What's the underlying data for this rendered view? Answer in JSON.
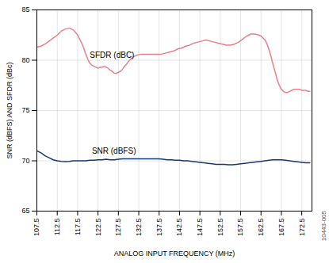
{
  "chart_data": {
    "type": "line",
    "xlabel": "ANALOG INPUT FREQUENCY (MHz)",
    "ylabel": "SNR (dBFS) AND SFDR (dBc)",
    "caption": "10443-005",
    "xlim": [
      107.5,
      175.0
    ],
    "xticks": [
      107.5,
      112.5,
      117.5,
      122.5,
      127.5,
      132.5,
      137.5,
      142.5,
      147.5,
      152.5,
      157.5,
      162.5,
      167.5,
      172.5
    ],
    "ylim": [
      65,
      85
    ],
    "yticks": [
      65,
      70,
      75,
      80,
      85
    ],
    "grid": true,
    "annotations": [
      {
        "text": "SFDR (dBC)",
        "x": 120.5,
        "y": 80.2
      },
      {
        "text": "SNR (dBFS)",
        "x": 121.0,
        "y": 70.7
      }
    ],
    "series": [
      {
        "name": "SFDR (dBC)",
        "color": "#E8808C",
        "x": [
          107.5,
          108.5,
          109.5,
          110.5,
          111.5,
          112.5,
          113.5,
          114.5,
          115.5,
          116.5,
          117.5,
          118.0,
          118.5,
          119.0,
          119.5,
          120.0,
          120.5,
          121.0,
          121.5,
          122.0,
          122.5,
          123.0,
          123.5,
          124.0,
          124.5,
          125.0,
          125.5,
          126.0,
          126.5,
          127.0,
          127.5,
          128.0,
          128.5,
          129.0,
          129.5,
          130.0,
          131.0,
          132.0,
          133.0,
          134.0,
          135.0,
          136.0,
          137.0,
          138.0,
          139.0,
          140.0,
          141.0,
          142.0,
          143.0,
          144.0,
          145.0,
          146.0,
          147.0,
          148.0,
          149.0,
          150.0,
          151.0,
          152.0,
          153.0,
          154.0,
          155.0,
          156.0,
          157.0,
          158.0,
          159.0,
          160.0,
          161.0,
          162.0,
          162.5,
          163.0,
          163.5,
          164.0,
          164.5,
          165.0,
          165.5,
          166.0,
          166.5,
          167.0,
          167.5,
          168.0,
          168.5,
          169.0,
          169.5,
          170.0,
          170.5,
          171.0,
          171.5,
          172.0,
          172.5,
          173.0,
          173.5,
          174.0,
          174.5
        ],
        "values": [
          81.3,
          81.4,
          81.6,
          81.9,
          82.2,
          82.5,
          82.9,
          83.1,
          83.2,
          83.0,
          82.5,
          82.1,
          81.7,
          81.2,
          80.6,
          80.1,
          79.7,
          79.5,
          79.4,
          79.3,
          79.2,
          79.3,
          79.3,
          79.4,
          79.3,
          79.2,
          79.0,
          78.9,
          78.7,
          78.7,
          78.8,
          78.9,
          79.1,
          79.4,
          79.6,
          79.9,
          80.3,
          80.5,
          80.6,
          80.6,
          80.6,
          80.6,
          80.6,
          80.6,
          80.7,
          80.8,
          80.9,
          81.1,
          81.2,
          81.4,
          81.5,
          81.7,
          81.8,
          81.9,
          82.0,
          81.9,
          81.8,
          81.7,
          81.6,
          81.5,
          81.5,
          81.6,
          81.8,
          82.1,
          82.4,
          82.6,
          82.6,
          82.5,
          82.4,
          82.2,
          82.0,
          81.6,
          81.0,
          80.3,
          79.5,
          78.8,
          78.0,
          77.5,
          77.1,
          76.9,
          76.8,
          76.8,
          76.9,
          77.0,
          77.1,
          77.1,
          77.1,
          77.1,
          77.0,
          77.0,
          77.0,
          76.9,
          76.9
        ]
      },
      {
        "name": "SNR (dBFS)",
        "color": "#1A3870",
        "x": [
          107.5,
          108.5,
          109.5,
          110.5,
          111.5,
          112.5,
          113.5,
          114.5,
          115.5,
          116.5,
          117.5,
          118.5,
          119.5,
          120.5,
          121.5,
          122.5,
          123.5,
          124.5,
          125.5,
          126.5,
          127.5,
          128.5,
          129.5,
          130.5,
          131.5,
          132.5,
          133.5,
          134.5,
          135.5,
          136.5,
          137.5,
          138.5,
          139.5,
          140.5,
          141.5,
          142.5,
          143.5,
          144.5,
          145.5,
          146.5,
          147.5,
          148.5,
          149.5,
          150.5,
          151.5,
          152.5,
          153.5,
          154.5,
          155.5,
          156.5,
          157.5,
          158.5,
          159.5,
          160.5,
          161.5,
          162.5,
          163.5,
          164.5,
          165.5,
          166.5,
          167.5,
          168.5,
          169.5,
          170.5,
          171.5,
          172.5,
          173.5,
          174.5
        ],
        "values": [
          71.0,
          70.8,
          70.5,
          70.3,
          70.1,
          70.0,
          69.95,
          69.92,
          69.95,
          70.0,
          70.0,
          70.0,
          70.0,
          70.05,
          70.05,
          70.1,
          70.1,
          70.15,
          70.1,
          70.1,
          70.15,
          70.2,
          70.2,
          70.2,
          70.2,
          70.2,
          70.2,
          70.2,
          70.2,
          70.2,
          70.2,
          70.15,
          70.1,
          70.1,
          70.05,
          70.05,
          70.0,
          70.0,
          69.95,
          69.9,
          69.85,
          69.8,
          69.75,
          69.7,
          69.65,
          69.65,
          69.65,
          69.6,
          69.6,
          69.65,
          69.7,
          69.75,
          69.8,
          69.85,
          69.9,
          69.95,
          70.0,
          70.05,
          70.1,
          70.1,
          70.1,
          70.05,
          70.0,
          69.95,
          69.9,
          69.85,
          69.8,
          69.8
        ]
      }
    ]
  }
}
